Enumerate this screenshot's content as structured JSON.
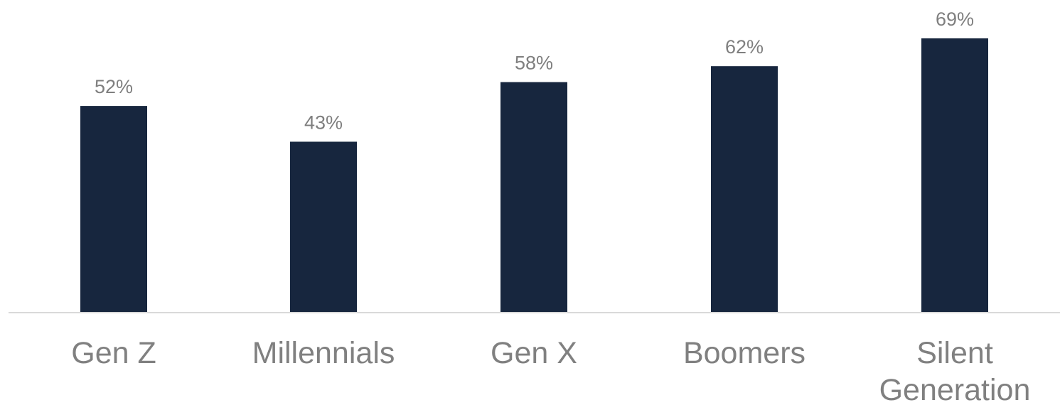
{
  "chart_data": {
    "type": "bar",
    "categories": [
      "Gen Z",
      "Millennials",
      "Gen X",
      "Boomers",
      "Silent Generation"
    ],
    "values": [
      52,
      43,
      58,
      62,
      69
    ],
    "value_labels": [
      "52%",
      "43%",
      "58%",
      "62%",
      "69%"
    ],
    "title": "",
    "xlabel": "",
    "ylabel": "",
    "ylim": [
      0,
      69
    ],
    "grid": false,
    "legend": "none",
    "bar_color": "#17263e",
    "axis_color": "#d9d9d9",
    "label_color": "#7f7f7f"
  }
}
